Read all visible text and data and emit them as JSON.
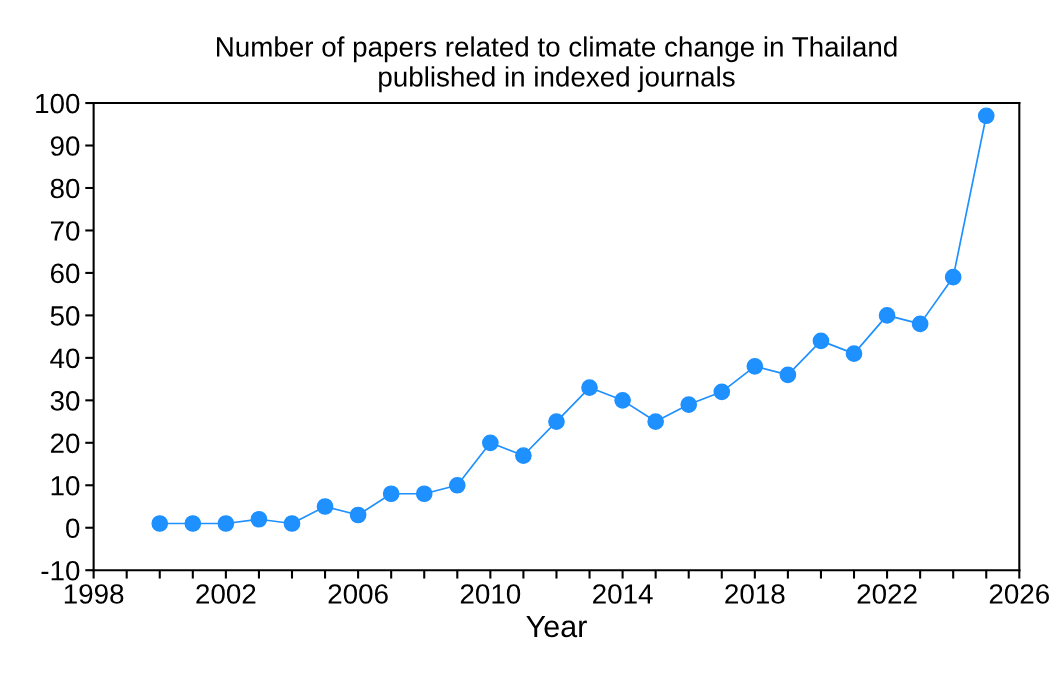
{
  "chart_data": {
    "type": "line",
    "title": "Number of papers related to climate change in Thailand\npublished in indexed journals",
    "xlabel": "Year",
    "x": [
      2000,
      2001,
      2002,
      2003,
      2004,
      2005,
      2006,
      2007,
      2008,
      2009,
      2010,
      2011,
      2012,
      2013,
      2014,
      2015,
      2016,
      2017,
      2018,
      2019,
      2020,
      2021,
      2022,
      2023,
      2024,
      2025
    ],
    "series": [
      {
        "color": "#1e90ff",
        "values": [
          1,
          1,
          1,
          2,
          1,
          5,
          3,
          8,
          8,
          10,
          20,
          17,
          25,
          33,
          30,
          25,
          29,
          32,
          38,
          36,
          44,
          41,
          50,
          48,
          59,
          97
        ]
      }
    ],
    "xlim": [
      1998,
      2026
    ],
    "xticks": [
      1998,
      {
        "value": 1999,
        "label": null
      },
      {
        "value": 2000,
        "label": null
      },
      {
        "value": 2001,
        "label": null
      },
      2002,
      {
        "value": 2003,
        "label": null
      },
      {
        "value": 2004,
        "label": null
      },
      {
        "value": 2005,
        "label": null
      },
      2006,
      {
        "value": 2007,
        "label": null
      },
      {
        "value": 2008,
        "label": null
      },
      {
        "value": 2009,
        "label": null
      },
      2010,
      {
        "value": 2011,
        "label": null
      },
      {
        "value": 2012,
        "label": null
      },
      {
        "value": 2013,
        "label": null
      },
      2014,
      {
        "value": 2015,
        "label": null
      },
      {
        "value": 2016,
        "label": null
      },
      {
        "value": 2017,
        "label": null
      },
      2018,
      {
        "value": 2019,
        "label": null
      },
      {
        "value": 2020,
        "label": null
      },
      {
        "value": 2021,
        "label": null
      },
      2022,
      {
        "value": 2023,
        "label": null
      },
      {
        "value": 2024,
        "label": null
      },
      {
        "value": 2025,
        "label": null
      },
      2026
    ],
    "ylim": [
      -10,
      100
    ],
    "yticks": [
      -10,
      0,
      10,
      20,
      30,
      40,
      50,
      60,
      70,
      80,
      90,
      100
    ],
    "grid": false,
    "legend": false,
    "marker": "circle",
    "line_style": "solid"
  }
}
